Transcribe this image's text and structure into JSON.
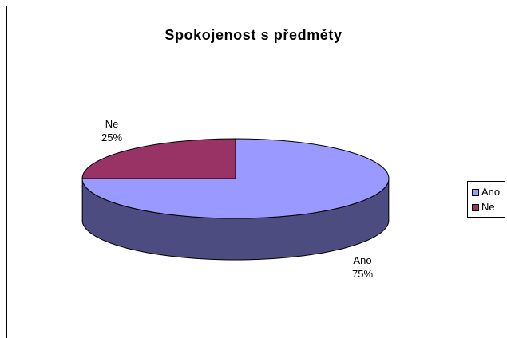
{
  "chart_data": {
    "type": "pie",
    "title": "Spokojenost s předměty",
    "slices": [
      {
        "label": "Ano",
        "value": 75,
        "value_label": "75%",
        "color": "#9999ff",
        "side_color": "#4c4c80"
      },
      {
        "label": "Ne",
        "value": 25,
        "value_label": "25%",
        "color": "#993366",
        "side_color": "#4c1933"
      }
    ],
    "legend": {
      "placement": "right",
      "entries": [
        {
          "label": "Ano",
          "color": "#9999ff"
        },
        {
          "label": "Ne",
          "color": "#993366"
        }
      ]
    },
    "style": "3d"
  }
}
